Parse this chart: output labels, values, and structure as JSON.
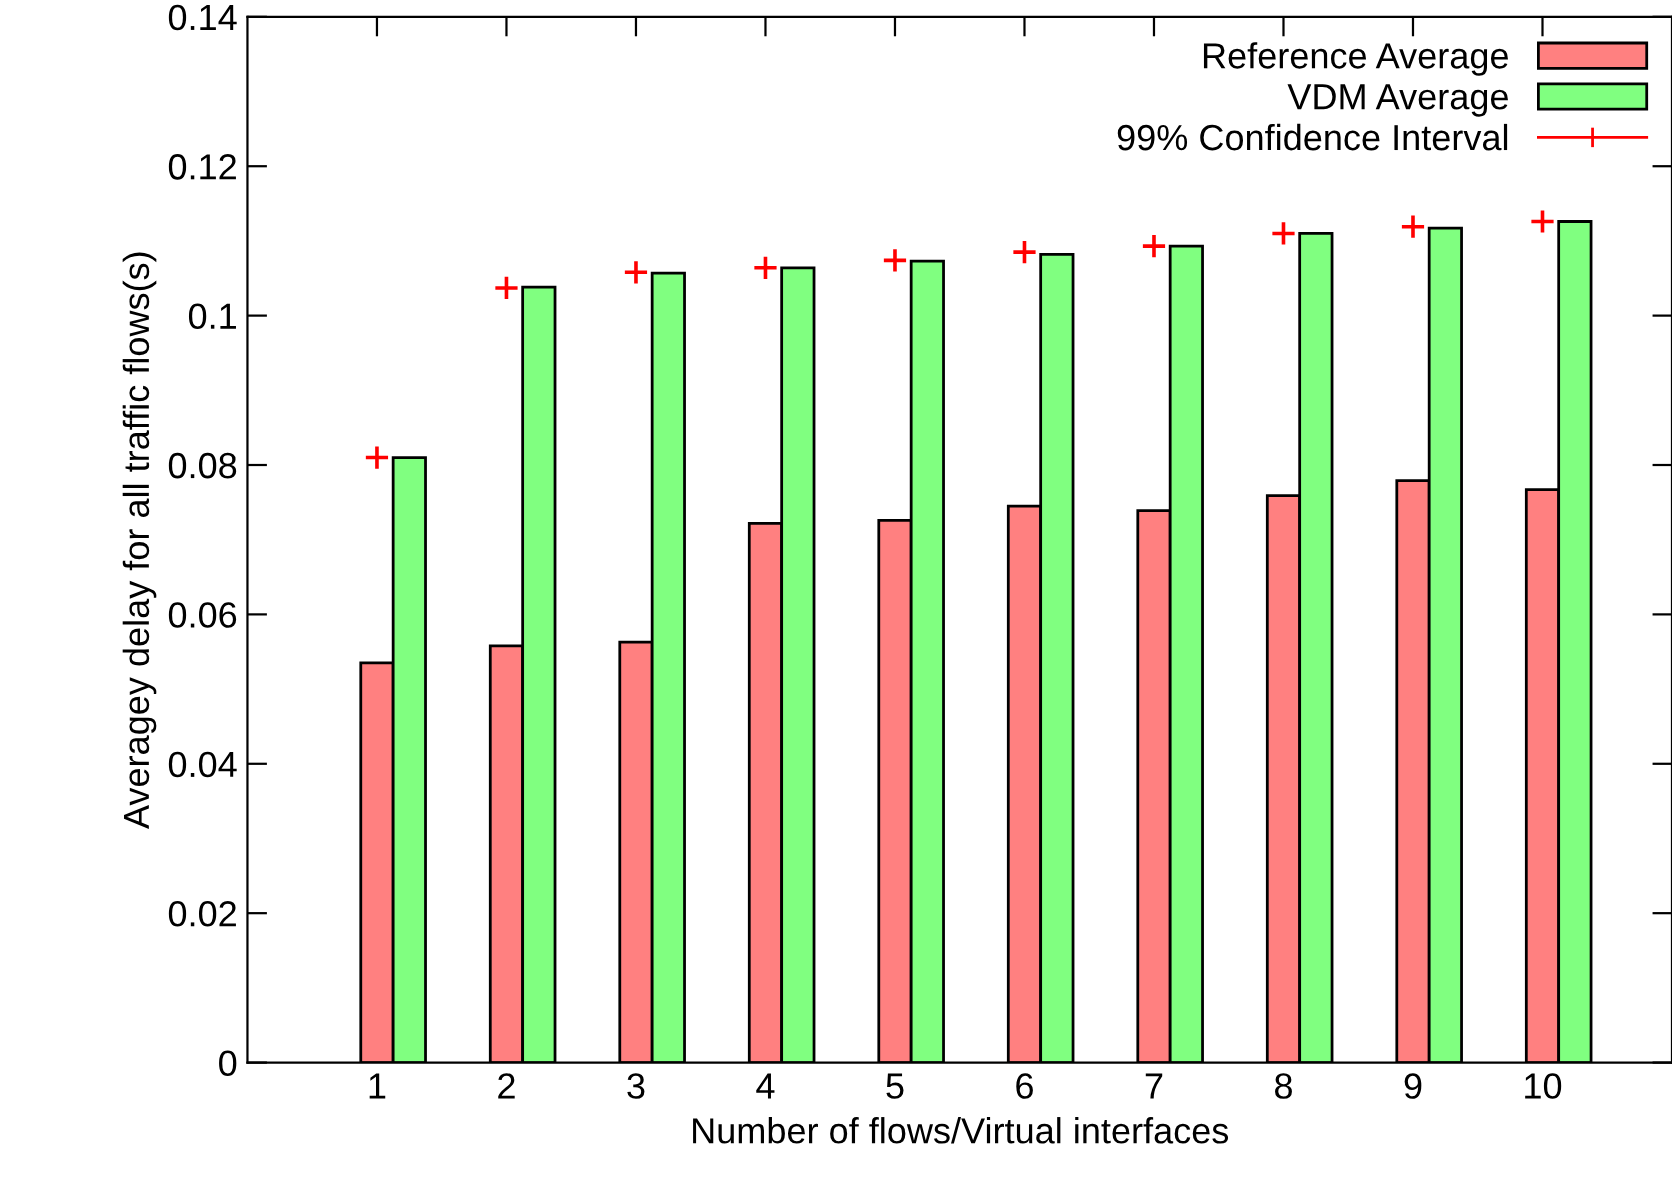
{
  "chart_data": {
    "type": "bar",
    "xlabel": "Number of flows/Virtual interfaces",
    "ylabel": "Averagey delay for all traffic flows(s)",
    "x": [
      1,
      2,
      3,
      4,
      5,
      6,
      7,
      8,
      9,
      10
    ],
    "series": [
      {
        "name": "Reference Average",
        "color": "#ff8080",
        "values": [
          0.0535,
          0.0558,
          0.0563,
          0.0722,
          0.0726,
          0.0745,
          0.0739,
          0.0759,
          0.0779,
          0.0767
        ]
      },
      {
        "name": "VDM Average",
        "color": "#80ff80",
        "values": [
          0.081,
          0.1038,
          0.1057,
          0.1064,
          0.1073,
          0.1082,
          0.1093,
          0.111,
          0.1117,
          0.1126
        ]
      },
      {
        "name": "99% Confidence Interval",
        "type": "scatter",
        "marker": "cross",
        "color": "#ff0000",
        "values": [
          0.081,
          0.1037,
          0.1058,
          0.1064,
          0.1074,
          0.1085,
          0.1093,
          0.111,
          0.1119,
          0.1126
        ]
      }
    ],
    "xlim": [
      0,
      11
    ],
    "xticks": [
      1,
      2,
      3,
      4,
      5,
      6,
      7,
      8,
      9,
      10
    ],
    "ylim": [
      0,
      0.14
    ],
    "yticks": [
      0,
      0.02,
      0.04,
      0.06,
      0.08,
      0.1,
      0.12,
      0.14
    ],
    "legend": "top right",
    "grid": false
  }
}
